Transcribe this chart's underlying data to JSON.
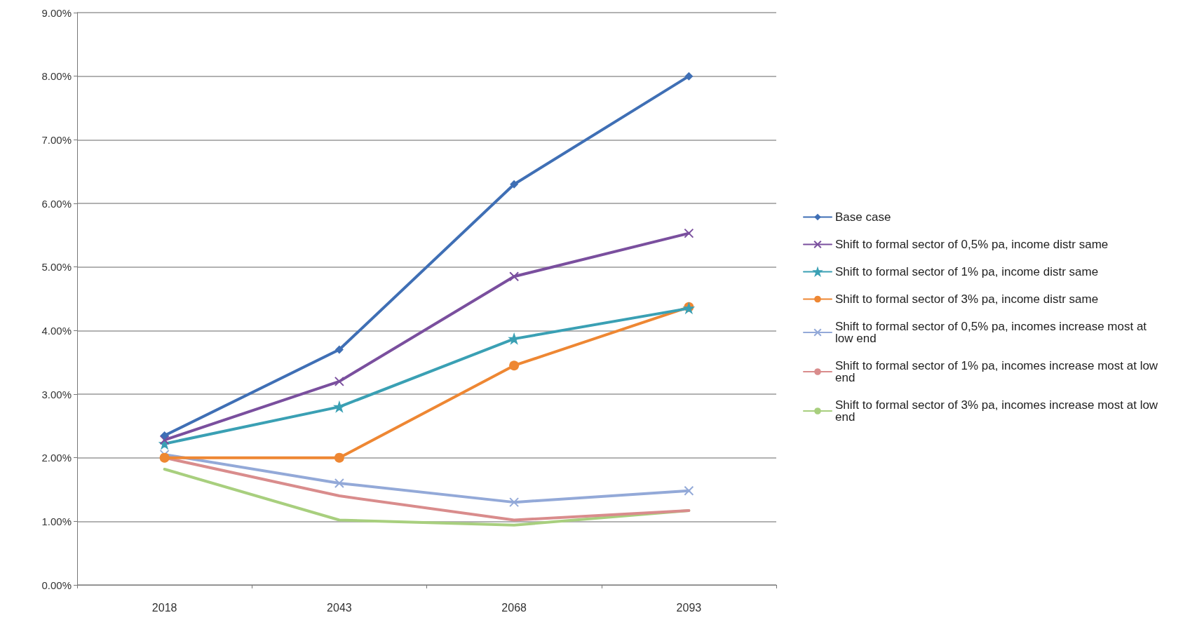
{
  "chart_data": {
    "type": "line",
    "categories": [
      "2018",
      "2043",
      "2068",
      "2093"
    ],
    "series": [
      {
        "name": "Base case",
        "color": "#3f6fb5",
        "marker": "diamond",
        "values": [
          2.35,
          3.7,
          6.3,
          8.0
        ]
      },
      {
        "name": "Shift to formal sector of 0,5% pa, income distr same",
        "color": "#7a4f9e",
        "marker": "cross",
        "values": [
          2.28,
          3.2,
          4.85,
          5.53
        ]
      },
      {
        "name": "Shift to formal sector of 1% pa, income distr same",
        "color": "#3aa0b4",
        "marker": "star",
        "values": [
          2.22,
          2.8,
          3.87,
          4.35
        ]
      },
      {
        "name": "Shift to formal sector of 3% pa, income distr same",
        "color": "#ee8733",
        "marker": "circle",
        "values": [
          2.0,
          2.0,
          3.45,
          4.37
        ]
      },
      {
        "name": "Shift to formal sector of 0,5% pa, incomes increase most at low end",
        "color": "#93a9d8",
        "marker": "cross",
        "values": [
          2.05,
          1.6,
          1.3,
          1.48
        ]
      },
      {
        "name": "Shift to formal sector of 1% pa, incomes increase most at low end",
        "color": "#d98c8c",
        "marker": "none",
        "values": [
          2.0,
          1.4,
          1.02,
          1.17
        ]
      },
      {
        "name": "Shift to formal sector of 3% pa, incomes increase most at low end",
        "color": "#a8cf7e",
        "marker": "none",
        "values": [
          1.82,
          1.02,
          0.94,
          1.17
        ]
      }
    ],
    "ylim": [
      0,
      9
    ],
    "yticks": [
      {
        "value": 0,
        "label": "0.00%"
      },
      {
        "value": 1,
        "label": "1.00%"
      },
      {
        "value": 2,
        "label": "2.00%"
      },
      {
        "value": 3,
        "label": "3.00%"
      },
      {
        "value": 4,
        "label": "4.00%"
      },
      {
        "value": 5,
        "label": "5.00%"
      },
      {
        "value": 6,
        "label": "6.00%"
      },
      {
        "value": 7,
        "label": "7.00%"
      },
      {
        "value": 8,
        "label": "8.00%"
      },
      {
        "value": 9,
        "label": "9.00%"
      }
    ],
    "grid": "y",
    "legend": "right",
    "line_style": "solid"
  }
}
